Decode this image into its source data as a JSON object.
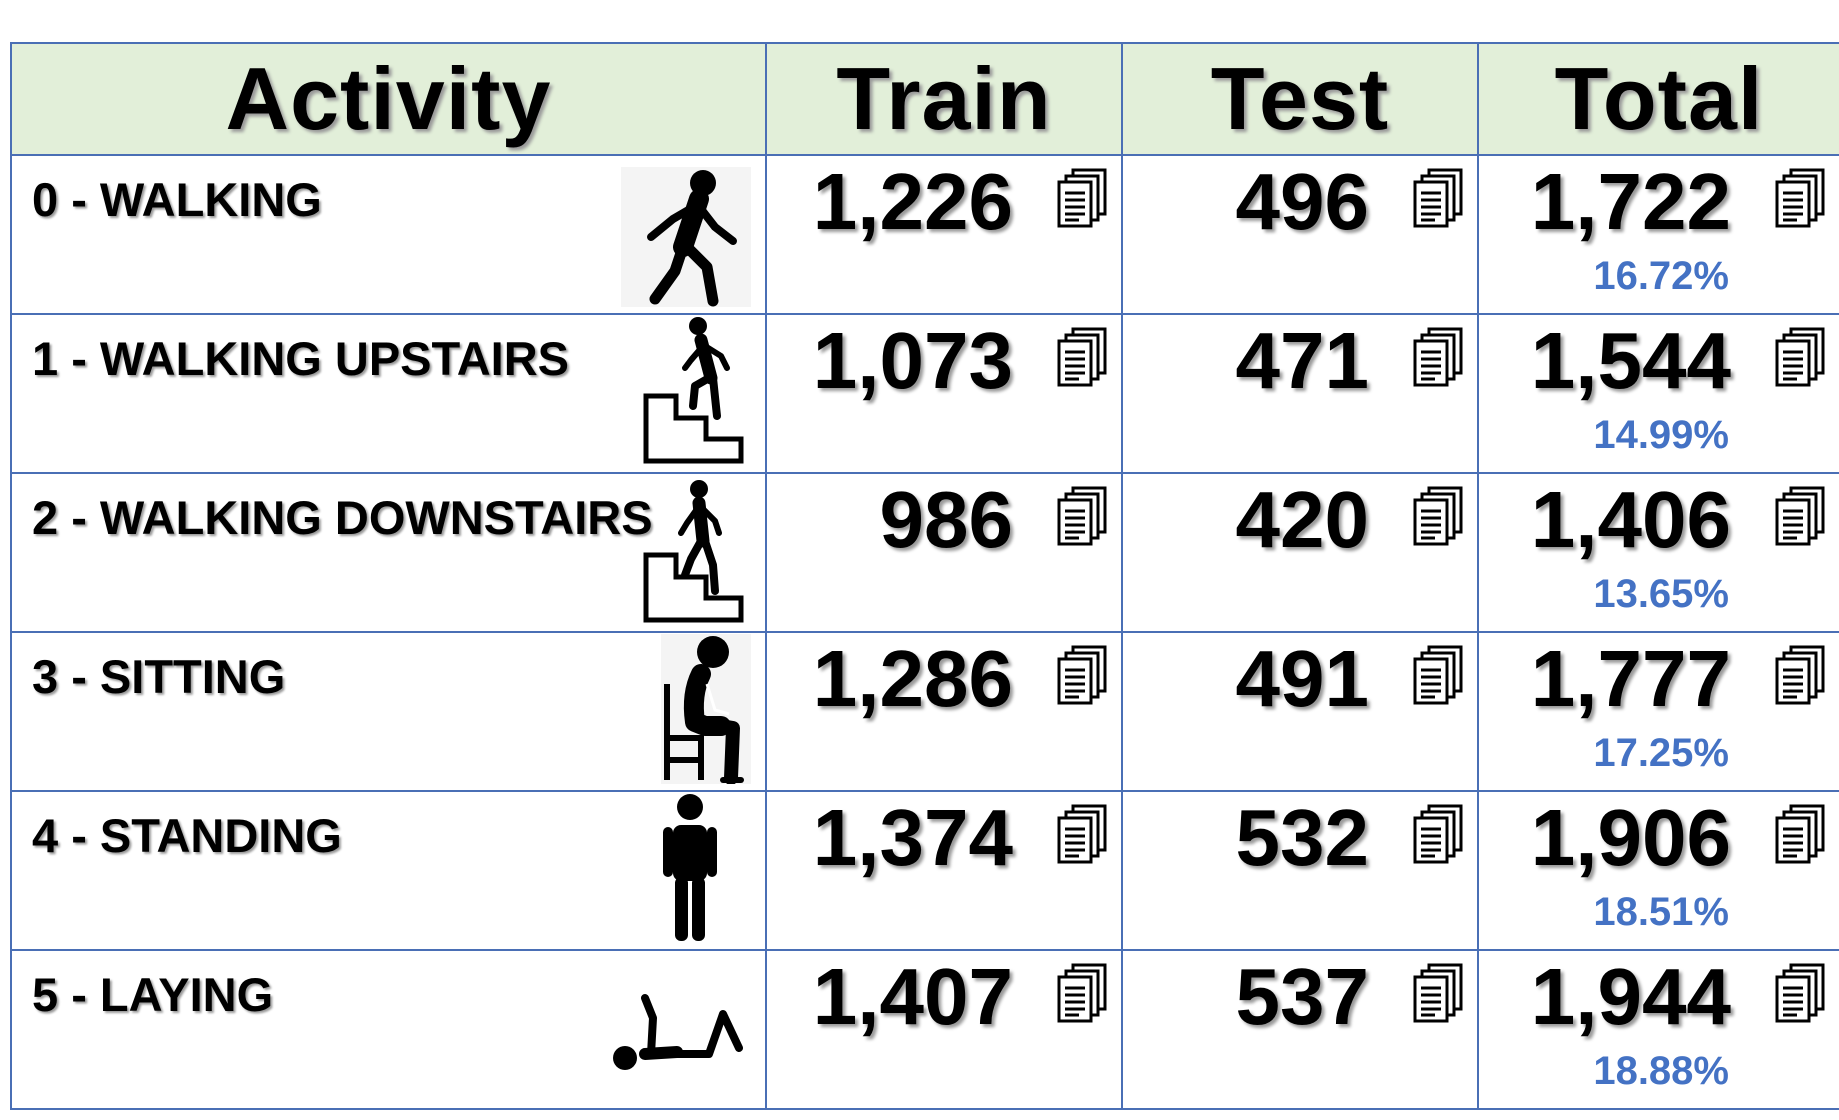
{
  "headers": {
    "activity": "Activity",
    "train": "Train",
    "test": "Test",
    "total": "Total"
  },
  "rows": [
    {
      "activity": "0 - WALKING",
      "icon": "walking-icon",
      "train": "1,226",
      "test": "496",
      "total": "1,722",
      "percent": "16.72%"
    },
    {
      "activity": "1 - WALKING UPSTAIRS",
      "icon": "walking-upstairs-icon",
      "train": "1,073",
      "test": "471",
      "total": "1,544",
      "percent": "14.99%"
    },
    {
      "activity": "2 - WALKING DOWNSTAIRS",
      "icon": "walking-downstairs-icon",
      "train": "986",
      "test": "420",
      "total": "1,406",
      "percent": "13.65%"
    },
    {
      "activity": "3 - SITTING",
      "icon": "sitting-icon",
      "train": "1,286",
      "test": "491",
      "total": "1,777",
      "percent": "17.25%"
    },
    {
      "activity": "4 - STANDING",
      "icon": "standing-icon",
      "train": "1,374",
      "test": "532",
      "total": "1,906",
      "percent": "18.51%"
    },
    {
      "activity": "5 - LAYING",
      "icon": "laying-icon",
      "train": "1,407",
      "test": "537",
      "total": "1,944",
      "percent": "18.88%"
    }
  ],
  "colors": {
    "header_bg": "#e2efd9",
    "border": "#4a6fb5",
    "percent_text": "#4472c4"
  }
}
